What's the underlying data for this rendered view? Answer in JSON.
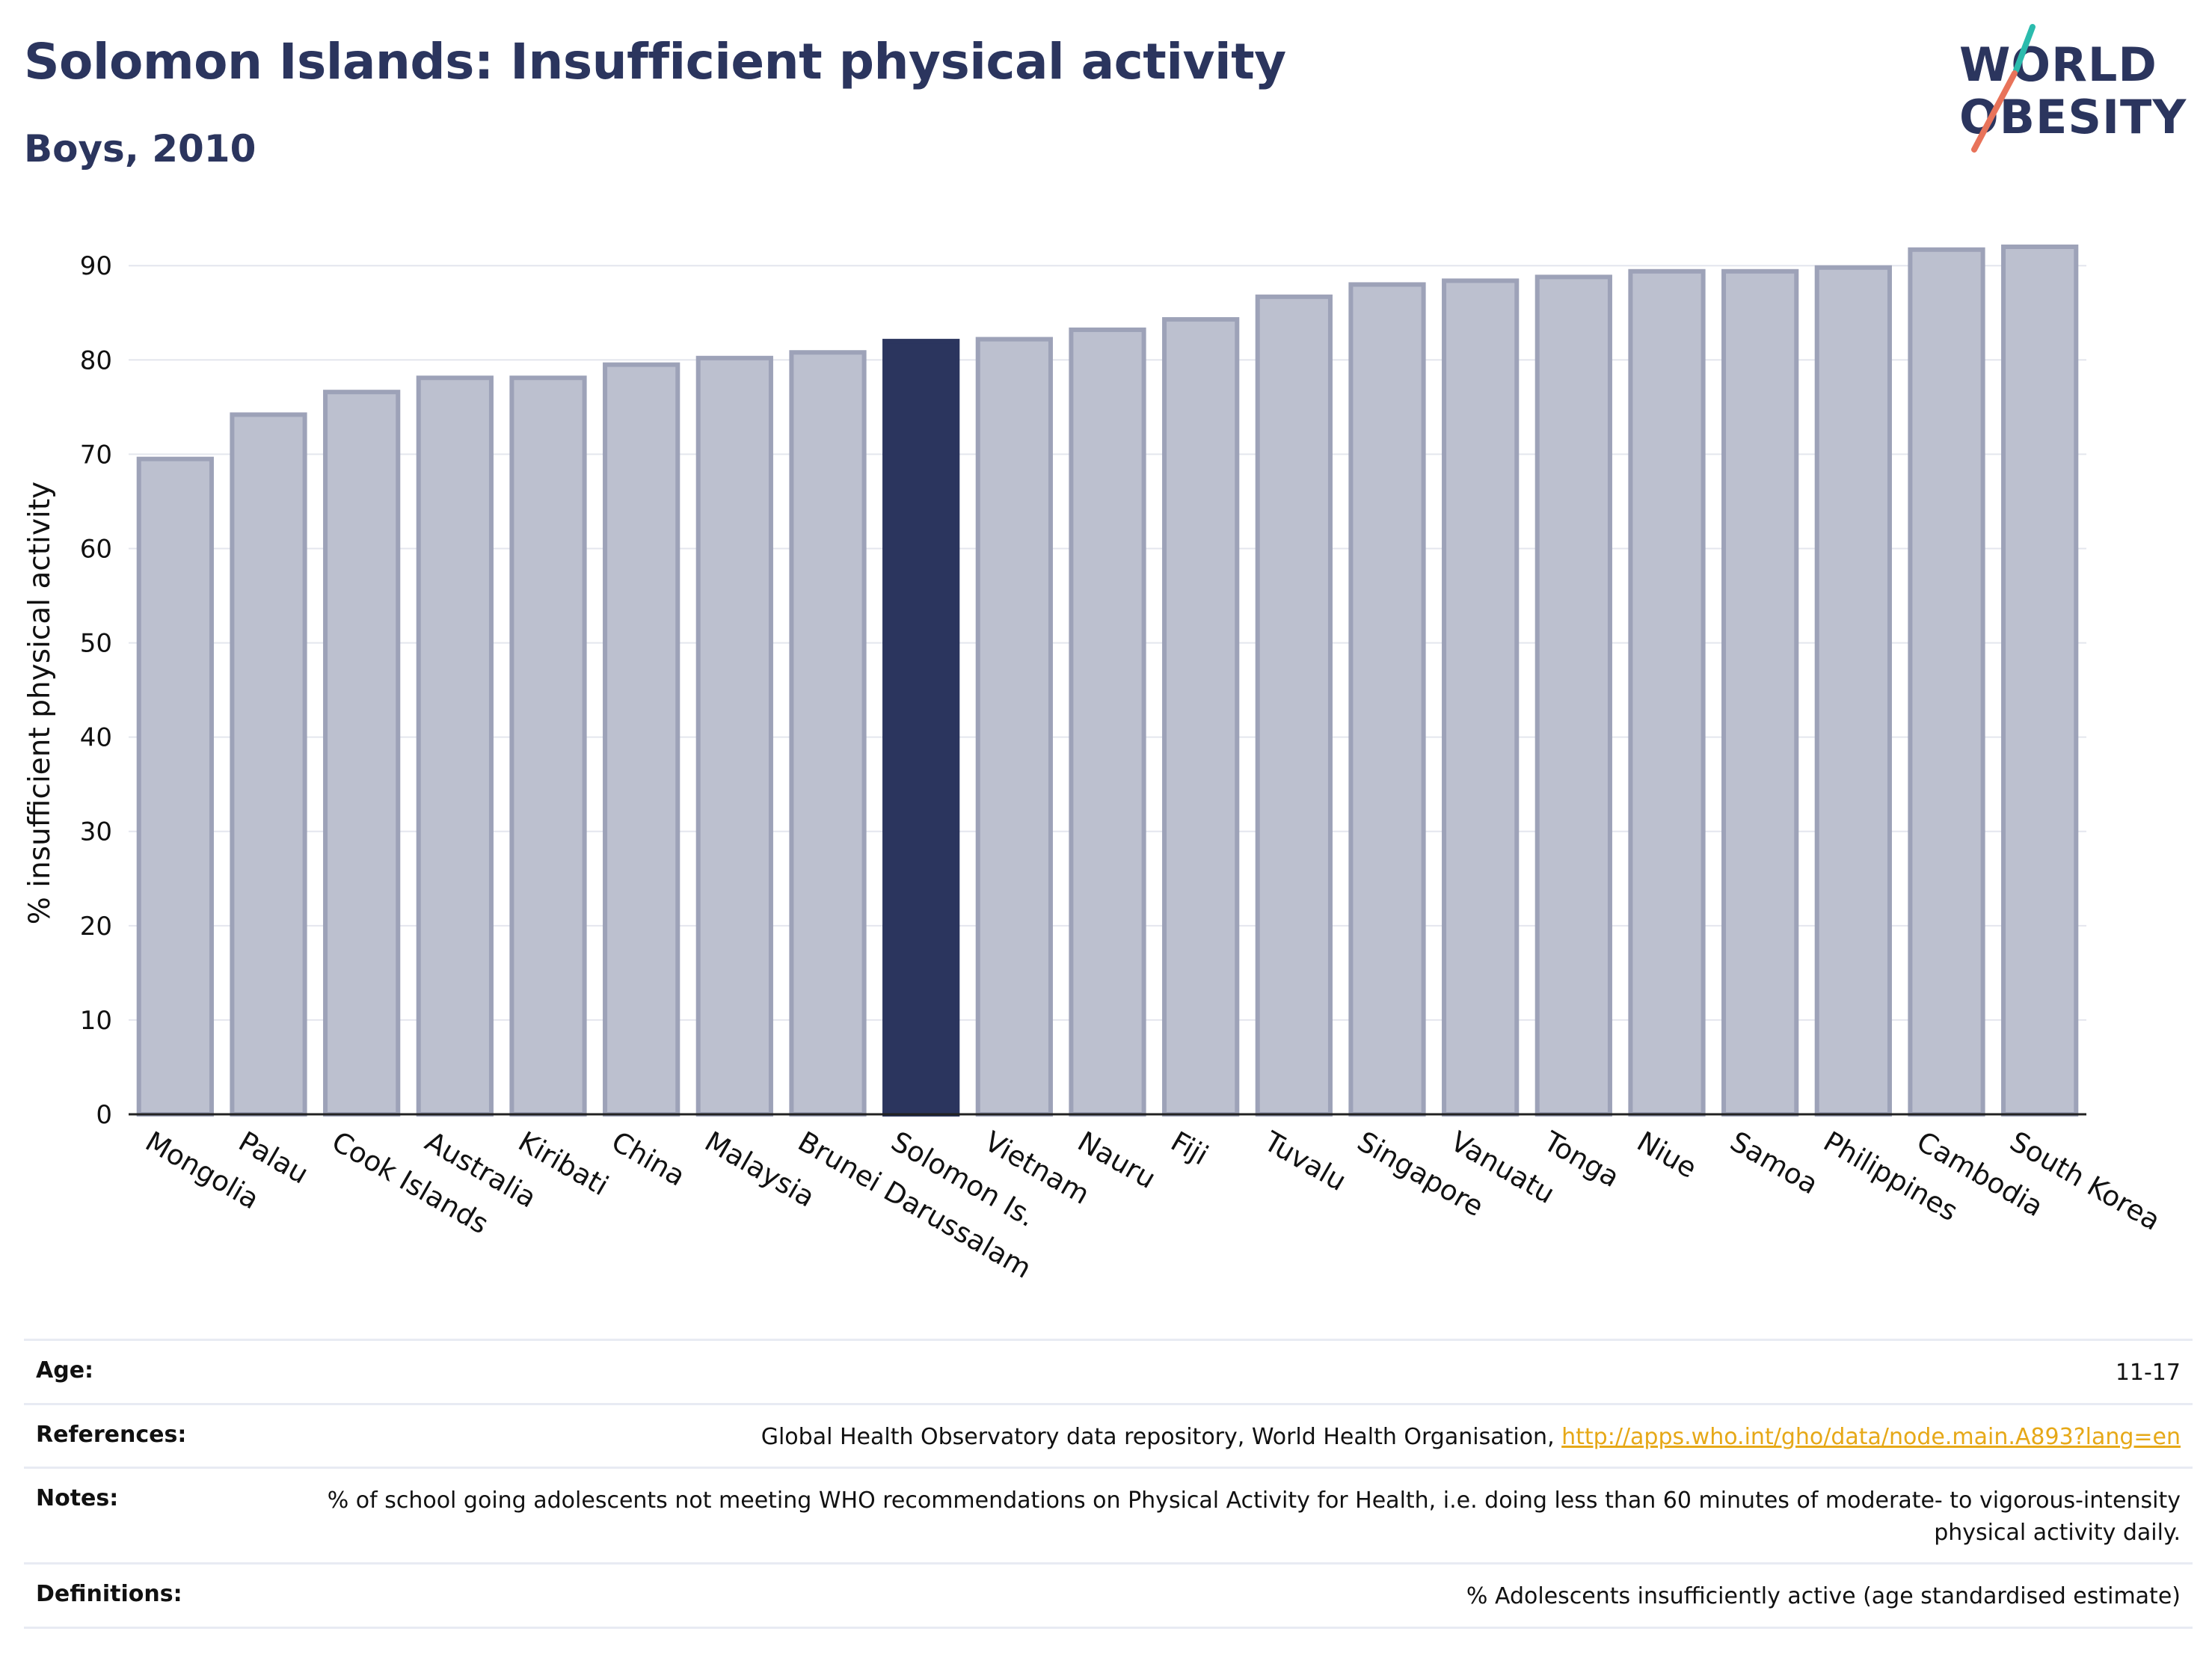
{
  "header": {
    "title": "Solomon Islands: Insufficient physical activity",
    "subtitle": "Boys, 2010"
  },
  "logo": {
    "line1": "WORLD",
    "line2": "OBESITY",
    "accent_teal": "#2bbbad",
    "accent_coral": "#e8735a"
  },
  "colors": {
    "bar": "#bcc0cf",
    "bar_border": "#9da2b8",
    "highlight": "#2b355e",
    "grid": "#e4e6ee",
    "axis": "#222222"
  },
  "chart_data": {
    "type": "bar",
    "title": "Solomon Islands: Insufficient physical activity",
    "subtitle": "Boys, 2010",
    "xlabel": "",
    "ylabel": "% insufficient physical activity",
    "ylim": [
      0,
      92
    ],
    "yticks": [
      0,
      10,
      20,
      30,
      40,
      50,
      60,
      70,
      80,
      90
    ],
    "grid": true,
    "highlight": "Solomon Is.",
    "categories": [
      "Mongolia",
      "Palau",
      "Cook Islands",
      "Australia",
      "Kiribati",
      "China",
      "Malaysia",
      "Brunei Darussalam",
      "Solomon Is.",
      "Vietnam",
      "Nauru",
      "Fiji",
      "Tuvalu",
      "Singapore",
      "Vanuatu",
      "Tonga",
      "Niue",
      "Samoa",
      "Philippines",
      "Cambodia",
      "South Korea"
    ],
    "values": [
      69.5,
      74.2,
      76.6,
      78.1,
      78.1,
      79.5,
      80.2,
      80.8,
      82.0,
      82.2,
      83.2,
      84.3,
      86.7,
      88.0,
      88.4,
      88.8,
      89.4,
      89.4,
      89.8,
      91.7,
      92.0
    ]
  },
  "meta": [
    {
      "label": "Age:",
      "value": "11-17"
    },
    {
      "label": "References:",
      "value": "Global Health Observatory data repository, World Health Organisation, ",
      "link": "http://apps.who.int/gho/data/node.main.A893?lang=en"
    },
    {
      "label": "Notes:",
      "value": "% of school going adolescents not meeting WHO recommendations on Physical Activity for Health, i.e. doing less than 60 minutes of moderate- to vigorous-intensity physical activity daily."
    },
    {
      "label": "Definitions:",
      "value": "% Adolescents insufficiently active (age standardised estimate)"
    }
  ]
}
